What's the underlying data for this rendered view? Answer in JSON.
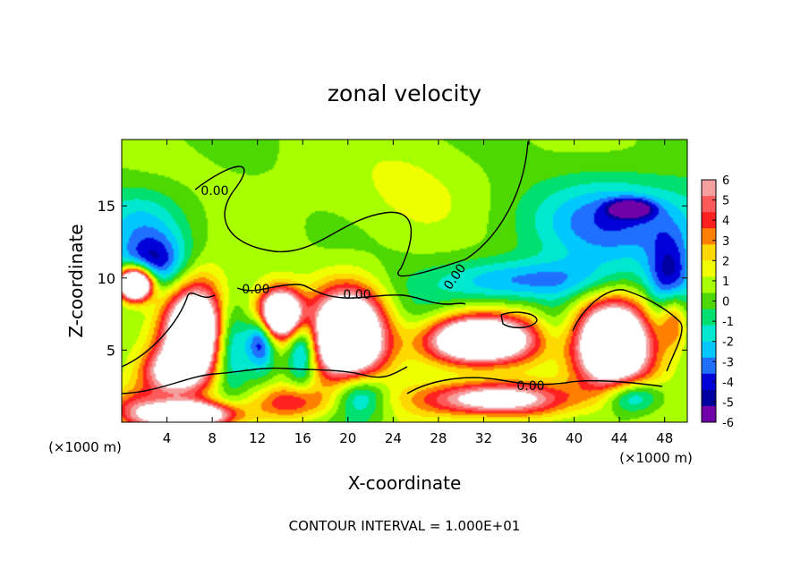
{
  "chart_data": {
    "type": "heatmap",
    "title": "zonal velocity",
    "xlabel": "X-coordinate",
    "ylabel": "Z-coordinate",
    "x_unit_left": "(×1000 m)",
    "x_unit_right": "(×1000 m)",
    "xlim": [
      0,
      50
    ],
    "ylim": [
      0,
      19.6
    ],
    "x_ticks": [
      4,
      8,
      12,
      16,
      20,
      24,
      28,
      32,
      36,
      40,
      44,
      48
    ],
    "y_ticks": [
      5,
      10,
      15
    ],
    "colorbar": {
      "ticks": [
        6,
        5,
        4,
        3,
        2,
        1,
        0,
        -1,
        -2,
        -3,
        -4,
        -5,
        -6
      ],
      "colors": [
        "#f4a0a0",
        "#ff5a5a",
        "#ff2020",
        "#ff8000",
        "#ffd800",
        "#f0ff00",
        "#a8ff00",
        "#4cd800",
        "#00e070",
        "#00e8d0",
        "#00c8ff",
        "#2070ff",
        "#0000d8",
        "#0000a0",
        "#7000a8"
      ]
    },
    "contour_labels": [
      "0.00",
      "0.00",
      "0.00",
      "0.00",
      "0.00"
    ],
    "footer": "CONTOUR INTERVAL =  1.000E+01",
    "features": [
      {
        "x": 23,
        "y": 16.5,
        "v": 0.6,
        "rx": 17,
        "ry": 4
      },
      {
        "x": 30,
        "y": 15,
        "v": 0.3,
        "rx": 8,
        "ry": 2.5
      },
      {
        "x": 2,
        "y": 14,
        "v": -2.5,
        "rx": 4,
        "ry": 2.5
      },
      {
        "x": 3,
        "y": 11,
        "v": -4.5,
        "rx": 3,
        "ry": 2
      },
      {
        "x": 44,
        "y": 14,
        "v": -4,
        "rx": 8,
        "ry": 3
      },
      {
        "x": 45,
        "y": 14.8,
        "v": -6,
        "rx": 1.8,
        "ry": 0.6
      },
      {
        "x": 36,
        "y": 9.8,
        "v": -3.5,
        "rx": 8,
        "ry": 1.5
      },
      {
        "x": 48.5,
        "y": 10,
        "v": -4.5,
        "rx": 2,
        "ry": 3
      },
      {
        "x": 1.2,
        "y": 9.6,
        "v": 15,
        "rx": 1.5,
        "ry": 1.1
      },
      {
        "x": 6.5,
        "y": 6.2,
        "v": 12,
        "rx": 2.8,
        "ry": 3.4
      },
      {
        "x": 4.2,
        "y": 3.5,
        "v": 5,
        "rx": 2.5,
        "ry": 1.6
      },
      {
        "x": 9.5,
        "y": 5.5,
        "v": -4,
        "rx": 1.6,
        "ry": 3
      },
      {
        "x": 14,
        "y": 7.5,
        "v": 12,
        "rx": 2,
        "ry": 1.6
      },
      {
        "x": 12.3,
        "y": 5.8,
        "v": -5,
        "rx": 1.2,
        "ry": 2
      },
      {
        "x": 16,
        "y": 5.2,
        "v": -5,
        "rx": 1.3,
        "ry": 2.5
      },
      {
        "x": 20,
        "y": 6,
        "v": 13,
        "rx": 3.2,
        "ry": 3.2
      },
      {
        "x": 26.5,
        "y": 6.5,
        "v": -1.5,
        "rx": 3,
        "ry": 2.5
      },
      {
        "x": 31.5,
        "y": 5.7,
        "v": 12,
        "rx": 5,
        "ry": 1.7
      },
      {
        "x": 38.5,
        "y": 6.5,
        "v": -2,
        "rx": 2.2,
        "ry": 2.2
      },
      {
        "x": 43.5,
        "y": 5.4,
        "v": 12,
        "rx": 3.4,
        "ry": 3.2
      },
      {
        "x": 48.8,
        "y": 7.2,
        "v": 4,
        "rx": 1.2,
        "ry": 2
      },
      {
        "x": 33,
        "y": 1.6,
        "v": 8,
        "rx": 6,
        "ry": 1.2
      },
      {
        "x": 15,
        "y": 1.4,
        "v": 4,
        "rx": 3.5,
        "ry": 1.2
      },
      {
        "x": 21,
        "y": 2,
        "v": -4,
        "rx": 2.3,
        "ry": 1.6
      },
      {
        "x": 6,
        "y": 0.5,
        "v": 10,
        "rx": 4,
        "ry": 0.9
      },
      {
        "x": 45,
        "y": 1.8,
        "v": -4.5,
        "rx": 2.5,
        "ry": 1.2
      },
      {
        "x": 1,
        "y": 1,
        "v": 3,
        "rx": 2.5,
        "ry": 1.5
      }
    ]
  }
}
